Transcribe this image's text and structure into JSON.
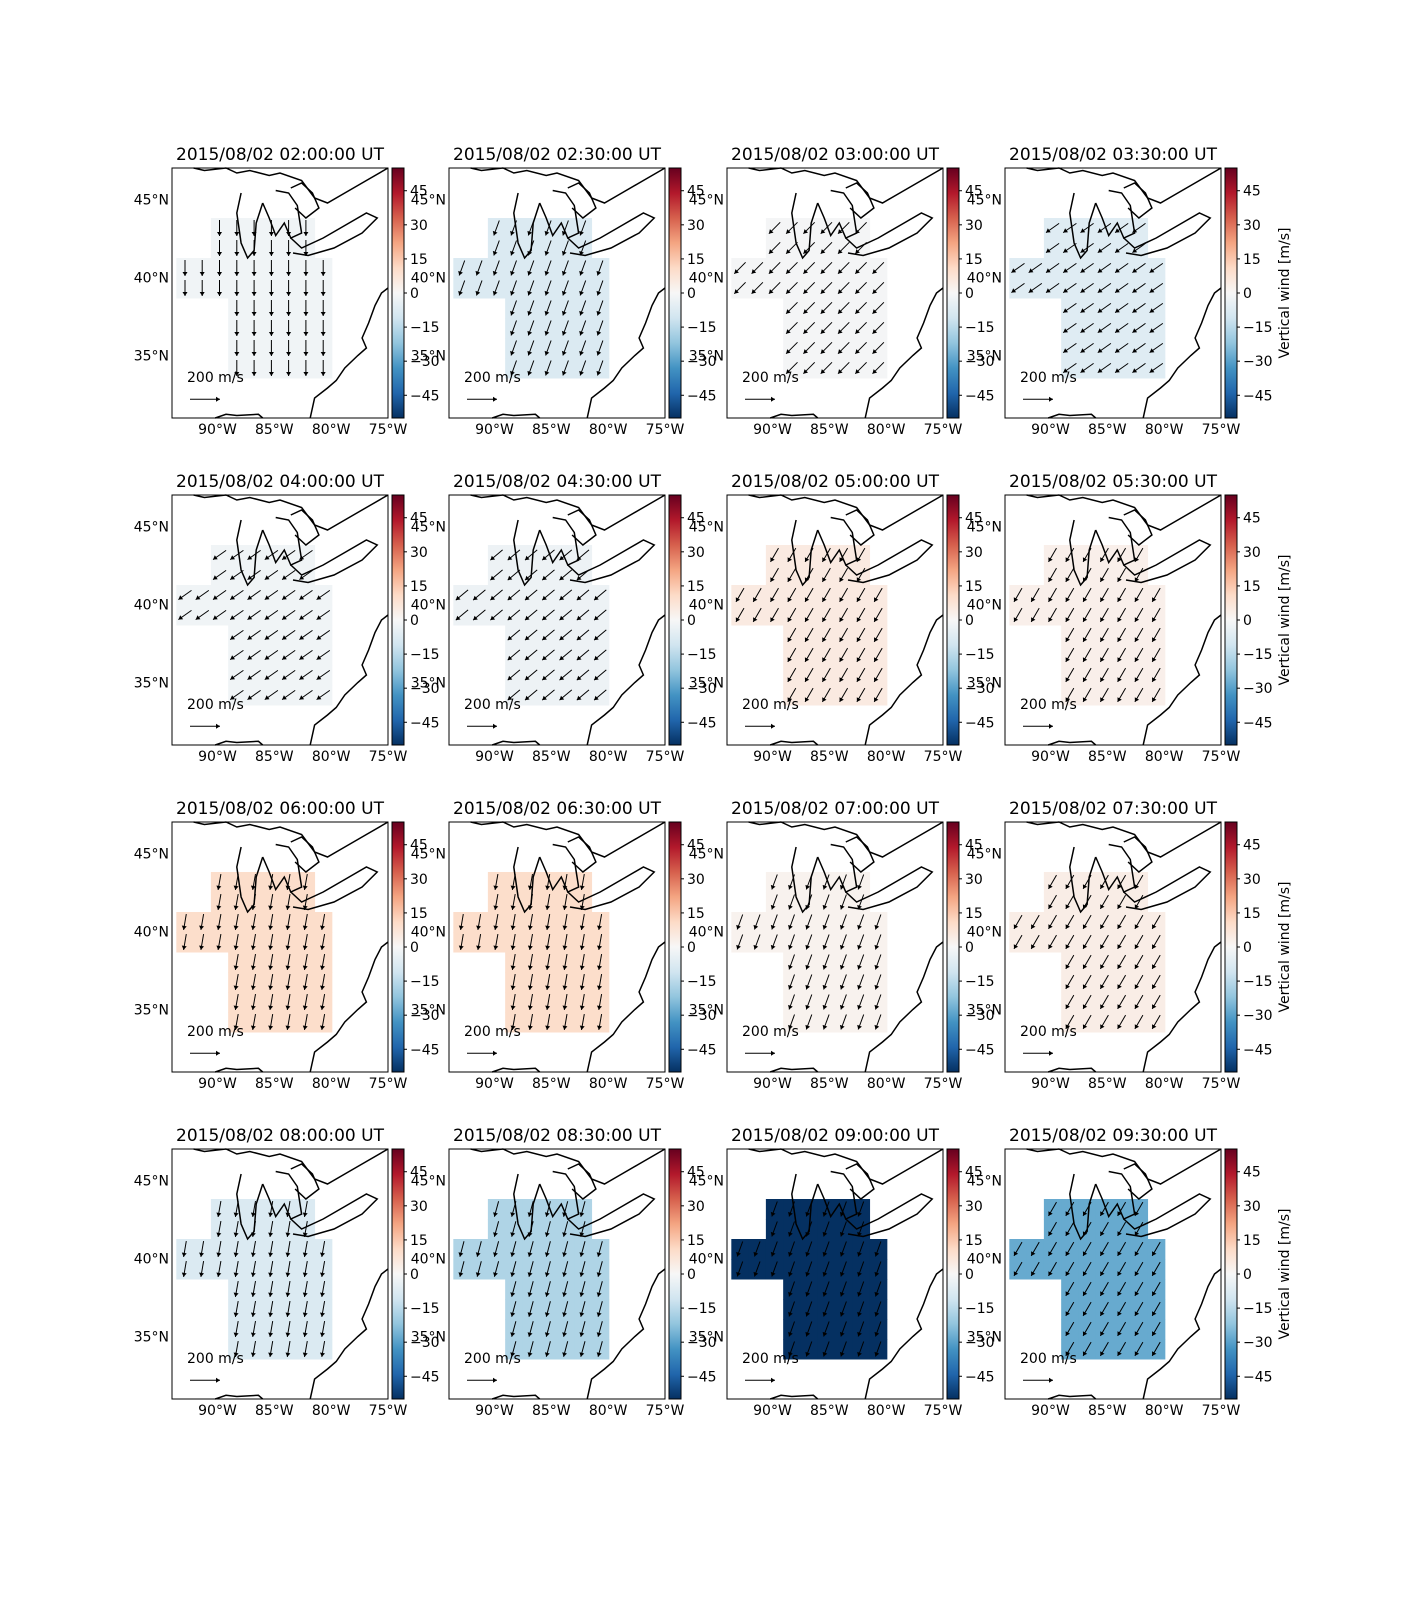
{
  "figure": {
    "colormap": "RdBu_r",
    "colorbar_label": "Vertical wind [m/s]",
    "colorbar_ticks": [
      "45",
      "30",
      "15",
      "0",
      "−15",
      "−30",
      "−45"
    ],
    "x_ticks": [
      "90°W",
      "85°W",
      "80°W",
      "75°W"
    ],
    "y_ticks": [
      "45°N",
      "40°N",
      "35°N"
    ],
    "scale_label": "200 m/s"
  },
  "chart_data": [
    {
      "type": "heatmap",
      "title": "2015/08/02 02:00:00 UT",
      "value": -2,
      "xlim": [
        -94,
        -75
      ],
      "ylim": [
        31,
        47
      ],
      "clim": [
        -55,
        55
      ],
      "wind_dir_deg": 180,
      "show_cbar_label": false
    },
    {
      "type": "heatmap",
      "title": "2015/08/02 02:30:00 UT",
      "value": -8,
      "xlim": [
        -94,
        -75
      ],
      "ylim": [
        31,
        47
      ],
      "clim": [
        -55,
        55
      ],
      "wind_dir_deg": 200,
      "show_cbar_label": false
    },
    {
      "type": "heatmap",
      "title": "2015/08/02 03:00:00 UT",
      "value": -1,
      "xlim": [
        -94,
        -75
      ],
      "ylim": [
        31,
        47
      ],
      "clim": [
        -55,
        55
      ],
      "wind_dir_deg": 225,
      "show_cbar_label": false
    },
    {
      "type": "heatmap",
      "title": "2015/08/02 03:30:00 UT",
      "value": -7,
      "xlim": [
        -94,
        -75
      ],
      "ylim": [
        31,
        47
      ],
      "clim": [
        -55,
        55
      ],
      "wind_dir_deg": 235,
      "show_cbar_label": true
    },
    {
      "type": "heatmap",
      "title": "2015/08/02 04:00:00 UT",
      "value": -2,
      "xlim": [
        -94,
        -75
      ],
      "ylim": [
        31,
        47
      ],
      "clim": [
        -55,
        55
      ],
      "wind_dir_deg": 235,
      "show_cbar_label": false
    },
    {
      "type": "heatmap",
      "title": "2015/08/02 04:30:00 UT",
      "value": -3,
      "xlim": [
        -94,
        -75
      ],
      "ylim": [
        31,
        47
      ],
      "clim": [
        -55,
        55
      ],
      "wind_dir_deg": 230,
      "show_cbar_label": false
    },
    {
      "type": "heatmap",
      "title": "2015/08/02 05:00:00 UT",
      "value": 5,
      "xlim": [
        -94,
        -75
      ],
      "ylim": [
        31,
        47
      ],
      "clim": [
        -55,
        55
      ],
      "wind_dir_deg": 210,
      "show_cbar_label": false
    },
    {
      "type": "heatmap",
      "title": "2015/08/02 05:30:00 UT",
      "value": 3,
      "xlim": [
        -94,
        -75
      ],
      "ylim": [
        31,
        47
      ],
      "clim": [
        -55,
        55
      ],
      "wind_dir_deg": 210,
      "show_cbar_label": true
    },
    {
      "type": "heatmap",
      "title": "2015/08/02 06:00:00 UT",
      "value": 10,
      "xlim": [
        -94,
        -75
      ],
      "ylim": [
        31,
        47
      ],
      "clim": [
        -55,
        55
      ],
      "wind_dir_deg": 190,
      "show_cbar_label": false
    },
    {
      "type": "heatmap",
      "title": "2015/08/02 06:30:00 UT",
      "value": 10,
      "xlim": [
        -94,
        -75
      ],
      "ylim": [
        31,
        47
      ],
      "clim": [
        -55,
        55
      ],
      "wind_dir_deg": 190,
      "show_cbar_label": false
    },
    {
      "type": "heatmap",
      "title": "2015/08/02 07:00:00 UT",
      "value": 2,
      "xlim": [
        -94,
        -75
      ],
      "ylim": [
        31,
        47
      ],
      "clim": [
        -55,
        55
      ],
      "wind_dir_deg": 200,
      "show_cbar_label": false
    },
    {
      "type": "heatmap",
      "title": "2015/08/02 07:30:00 UT",
      "value": 4,
      "xlim": [
        -94,
        -75
      ],
      "ylim": [
        31,
        47
      ],
      "clim": [
        -55,
        55
      ],
      "wind_dir_deg": 210,
      "show_cbar_label": true
    },
    {
      "type": "heatmap",
      "title": "2015/08/02 08:00:00 UT",
      "value": -8,
      "xlim": [
        -94,
        -75
      ],
      "ylim": [
        31,
        47
      ],
      "clim": [
        -55,
        55
      ],
      "wind_dir_deg": 190,
      "show_cbar_label": false
    },
    {
      "type": "heatmap",
      "title": "2015/08/02 08:30:00 UT",
      "value": -17,
      "xlim": [
        -94,
        -75
      ],
      "ylim": [
        31,
        47
      ],
      "clim": [
        -55,
        55
      ],
      "wind_dir_deg": 195,
      "show_cbar_label": false
    },
    {
      "type": "heatmap",
      "title": "2015/08/02 09:00:00 UT",
      "value": -55,
      "xlim": [
        -94,
        -75
      ],
      "ylim": [
        31,
        47
      ],
      "clim": [
        -55,
        55
      ],
      "wind_dir_deg": 200,
      "show_cbar_label": false
    },
    {
      "type": "heatmap",
      "title": "2015/08/02 09:30:00 UT",
      "value": -28,
      "xlim": [
        -94,
        -75
      ],
      "ylim": [
        31,
        47
      ],
      "clim": [
        -55,
        55
      ],
      "wind_dir_deg": 210,
      "show_cbar_label": true
    }
  ]
}
